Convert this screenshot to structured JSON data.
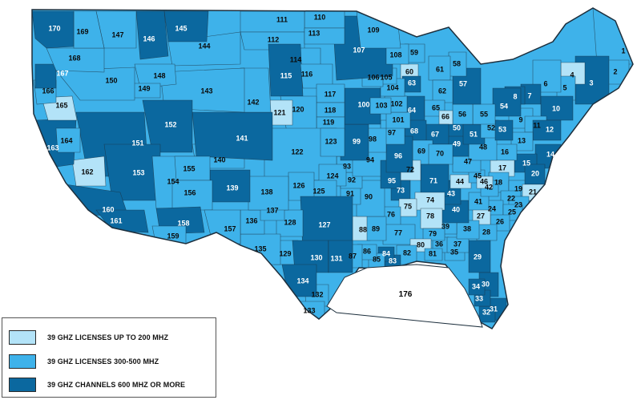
{
  "colors": {
    "light": "#b3e3f8",
    "medium": "#3eb2ea",
    "dark": "#0b689f",
    "border": "#1d2f3d",
    "gulf": "#ffffff"
  },
  "legend": {
    "items": [
      {
        "label": "39 GHZ LICENSES UP TO 200 MHZ",
        "color": "#b3e3f8"
      },
      {
        "label": "39 GHZ LICENSES 300-500 MHZ",
        "color": "#3eb2ea"
      },
      {
        "label": "39 GHZ CHANNELS 600 MHZ OR MORE",
        "color": "#0b689f"
      }
    ]
  },
  "gulf_label": "176",
  "regions": [
    {
      "id": "1",
      "tier": "medium"
    },
    {
      "id": "2",
      "tier": "medium"
    },
    {
      "id": "3",
      "tier": "dark"
    },
    {
      "id": "4",
      "tier": "light"
    },
    {
      "id": "5",
      "tier": "medium"
    },
    {
      "id": "6",
      "tier": "medium"
    },
    {
      "id": "7",
      "tier": "dark"
    },
    {
      "id": "8",
      "tier": "dark"
    },
    {
      "id": "9",
      "tier": "medium"
    },
    {
      "id": "10",
      "tier": "dark"
    },
    {
      "id": "11",
      "tier": "medium"
    },
    {
      "id": "12",
      "tier": "dark"
    },
    {
      "id": "13",
      "tier": "medium"
    },
    {
      "id": "14",
      "tier": "dark"
    },
    {
      "id": "15",
      "tier": "dark"
    },
    {
      "id": "16",
      "tier": "medium"
    },
    {
      "id": "17",
      "tier": "light"
    },
    {
      "id": "18",
      "tier": "medium"
    },
    {
      "id": "19",
      "tier": "medium"
    },
    {
      "id": "20",
      "tier": "dark"
    },
    {
      "id": "21",
      "tier": "light"
    },
    {
      "id": "22",
      "tier": "medium"
    },
    {
      "id": "23",
      "tier": "medium"
    },
    {
      "id": "24",
      "tier": "medium"
    },
    {
      "id": "25",
      "tier": "medium"
    },
    {
      "id": "26",
      "tier": "medium"
    },
    {
      "id": "27",
      "tier": "light"
    },
    {
      "id": "28",
      "tier": "medium"
    },
    {
      "id": "29",
      "tier": "dark"
    },
    {
      "id": "30",
      "tier": "dark"
    },
    {
      "id": "31",
      "tier": "dark"
    },
    {
      "id": "32",
      "tier": "dark"
    },
    {
      "id": "33",
      "tier": "dark"
    },
    {
      "id": "34",
      "tier": "dark"
    },
    {
      "id": "35",
      "tier": "medium"
    },
    {
      "id": "36",
      "tier": "medium"
    },
    {
      "id": "37",
      "tier": "medium"
    },
    {
      "id": "38",
      "tier": "medium"
    },
    {
      "id": "39",
      "tier": "medium"
    },
    {
      "id": "40",
      "tier": "dark"
    },
    {
      "id": "41",
      "tier": "medium"
    },
    {
      "id": "42",
      "tier": "medium"
    },
    {
      "id": "43",
      "tier": "dark"
    },
    {
      "id": "44",
      "tier": "light"
    },
    {
      "id": "45",
      "tier": "medium"
    },
    {
      "id": "46",
      "tier": "light"
    },
    {
      "id": "47",
      "tier": "medium"
    },
    {
      "id": "48",
      "tier": "medium"
    },
    {
      "id": "49",
      "tier": "dark"
    },
    {
      "id": "50",
      "tier": "dark"
    },
    {
      "id": "51",
      "tier": "dark"
    },
    {
      "id": "52",
      "tier": "medium"
    },
    {
      "id": "53",
      "tier": "dark"
    },
    {
      "id": "54",
      "tier": "dark"
    },
    {
      "id": "55",
      "tier": "medium"
    },
    {
      "id": "56",
      "tier": "medium"
    },
    {
      "id": "57",
      "tier": "dark"
    },
    {
      "id": "58",
      "tier": "medium"
    },
    {
      "id": "59",
      "tier": "medium"
    },
    {
      "id": "60",
      "tier": "light"
    },
    {
      "id": "61",
      "tier": "medium"
    },
    {
      "id": "62",
      "tier": "medium"
    },
    {
      "id": "63",
      "tier": "dark"
    },
    {
      "id": "64",
      "tier": "dark"
    },
    {
      "id": "65",
      "tier": "medium"
    },
    {
      "id": "66",
      "tier": "light"
    },
    {
      "id": "67",
      "tier": "dark"
    },
    {
      "id": "68",
      "tier": "dark"
    },
    {
      "id": "69",
      "tier": "medium"
    },
    {
      "id": "70",
      "tier": "medium"
    },
    {
      "id": "71",
      "tier": "dark"
    },
    {
      "id": "72",
      "tier": "light"
    },
    {
      "id": "73",
      "tier": "dark"
    },
    {
      "id": "74",
      "tier": "light"
    },
    {
      "id": "75",
      "tier": "light"
    },
    {
      "id": "76",
      "tier": "medium"
    },
    {
      "id": "77",
      "tier": "medium"
    },
    {
      "id": "78",
      "tier": "light"
    },
    {
      "id": "79",
      "tier": "medium"
    },
    {
      "id": "80",
      "tier": "light"
    },
    {
      "id": "81",
      "tier": "medium"
    },
    {
      "id": "82",
      "tier": "medium"
    },
    {
      "id": "83",
      "tier": "dark"
    },
    {
      "id": "84",
      "tier": "dark"
    },
    {
      "id": "85",
      "tier": "medium"
    },
    {
      "id": "86",
      "tier": "medium"
    },
    {
      "id": "87",
      "tier": "medium"
    },
    {
      "id": "88",
      "tier": "light"
    },
    {
      "id": "89",
      "tier": "medium"
    },
    {
      "id": "90",
      "tier": "medium"
    },
    {
      "id": "91",
      "tier": "medium"
    },
    {
      "id": "92",
      "tier": "medium"
    },
    {
      "id": "93",
      "tier": "medium"
    },
    {
      "id": "94",
      "tier": "medium"
    },
    {
      "id": "95",
      "tier": "dark"
    },
    {
      "id": "96",
      "tier": "dark"
    },
    {
      "id": "97",
      "tier": "medium"
    },
    {
      "id": "98",
      "tier": "medium"
    },
    {
      "id": "99",
      "tier": "dark"
    },
    {
      "id": "100",
      "tier": "dark"
    },
    {
      "id": "101",
      "tier": "medium"
    },
    {
      "id": "102",
      "tier": "medium"
    },
    {
      "id": "103",
      "tier": "medium"
    },
    {
      "id": "104",
      "tier": "medium"
    },
    {
      "id": "105",
      "tier": "medium"
    },
    {
      "id": "106",
      "tier": "medium"
    },
    {
      "id": "107",
      "tier": "dark"
    },
    {
      "id": "108",
      "tier": "medium"
    },
    {
      "id": "109",
      "tier": "medium"
    },
    {
      "id": "110",
      "tier": "medium"
    },
    {
      "id": "111",
      "tier": "medium"
    },
    {
      "id": "112",
      "tier": "medium"
    },
    {
      "id": "113",
      "tier": "medium"
    },
    {
      "id": "114",
      "tier": "medium"
    },
    {
      "id": "115",
      "tier": "dark"
    },
    {
      "id": "116",
      "tier": "medium"
    },
    {
      "id": "117",
      "tier": "medium"
    },
    {
      "id": "118",
      "tier": "medium"
    },
    {
      "id": "119",
      "tier": "medium"
    },
    {
      "id": "120",
      "tier": "medium"
    },
    {
      "id": "121",
      "tier": "light"
    },
    {
      "id": "122",
      "tier": "medium"
    },
    {
      "id": "123",
      "tier": "medium"
    },
    {
      "id": "124",
      "tier": "medium"
    },
    {
      "id": "125",
      "tier": "medium"
    },
    {
      "id": "126",
      "tier": "medium"
    },
    {
      "id": "127",
      "tier": "dark"
    },
    {
      "id": "128",
      "tier": "medium"
    },
    {
      "id": "129",
      "tier": "medium"
    },
    {
      "id": "130",
      "tier": "dark"
    },
    {
      "id": "131",
      "tier": "dark"
    },
    {
      "id": "132",
      "tier": "medium"
    },
    {
      "id": "133",
      "tier": "medium"
    },
    {
      "id": "134",
      "tier": "dark"
    },
    {
      "id": "135",
      "tier": "medium"
    },
    {
      "id": "136",
      "tier": "medium"
    },
    {
      "id": "137",
      "tier": "medium"
    },
    {
      "id": "138",
      "tier": "medium"
    },
    {
      "id": "139",
      "tier": "dark"
    },
    {
      "id": "140",
      "tier": "medium"
    },
    {
      "id": "141",
      "tier": "dark"
    },
    {
      "id": "142",
      "tier": "medium"
    },
    {
      "id": "143",
      "tier": "medium"
    },
    {
      "id": "144",
      "tier": "medium"
    },
    {
      "id": "145",
      "tier": "dark"
    },
    {
      "id": "146",
      "tier": "dark"
    },
    {
      "id": "147",
      "tier": "medium"
    },
    {
      "id": "148",
      "tier": "medium"
    },
    {
      "id": "149",
      "tier": "medium"
    },
    {
      "id": "150",
      "tier": "medium"
    },
    {
      "id": "151",
      "tier": "dark"
    },
    {
      "id": "152",
      "tier": "dark"
    },
    {
      "id": "153",
      "tier": "dark"
    },
    {
      "id": "154",
      "tier": "medium"
    },
    {
      "id": "155",
      "tier": "medium"
    },
    {
      "id": "156",
      "tier": "medium"
    },
    {
      "id": "157",
      "tier": "medium"
    },
    {
      "id": "158",
      "tier": "dark"
    },
    {
      "id": "159",
      "tier": "medium"
    },
    {
      "id": "160",
      "tier": "dark"
    },
    {
      "id": "161",
      "tier": "dark"
    },
    {
      "id": "162",
      "tier": "light"
    },
    {
      "id": "163",
      "tier": "dark"
    },
    {
      "id": "164",
      "tier": "medium"
    },
    {
      "id": "165",
      "tier": "light"
    },
    {
      "id": "166",
      "tier": "medium"
    },
    {
      "id": "167",
      "tier": "dark"
    },
    {
      "id": "168",
      "tier": "medium"
    },
    {
      "id": "169",
      "tier": "medium"
    },
    {
      "id": "170",
      "tier": "dark"
    }
  ]
}
